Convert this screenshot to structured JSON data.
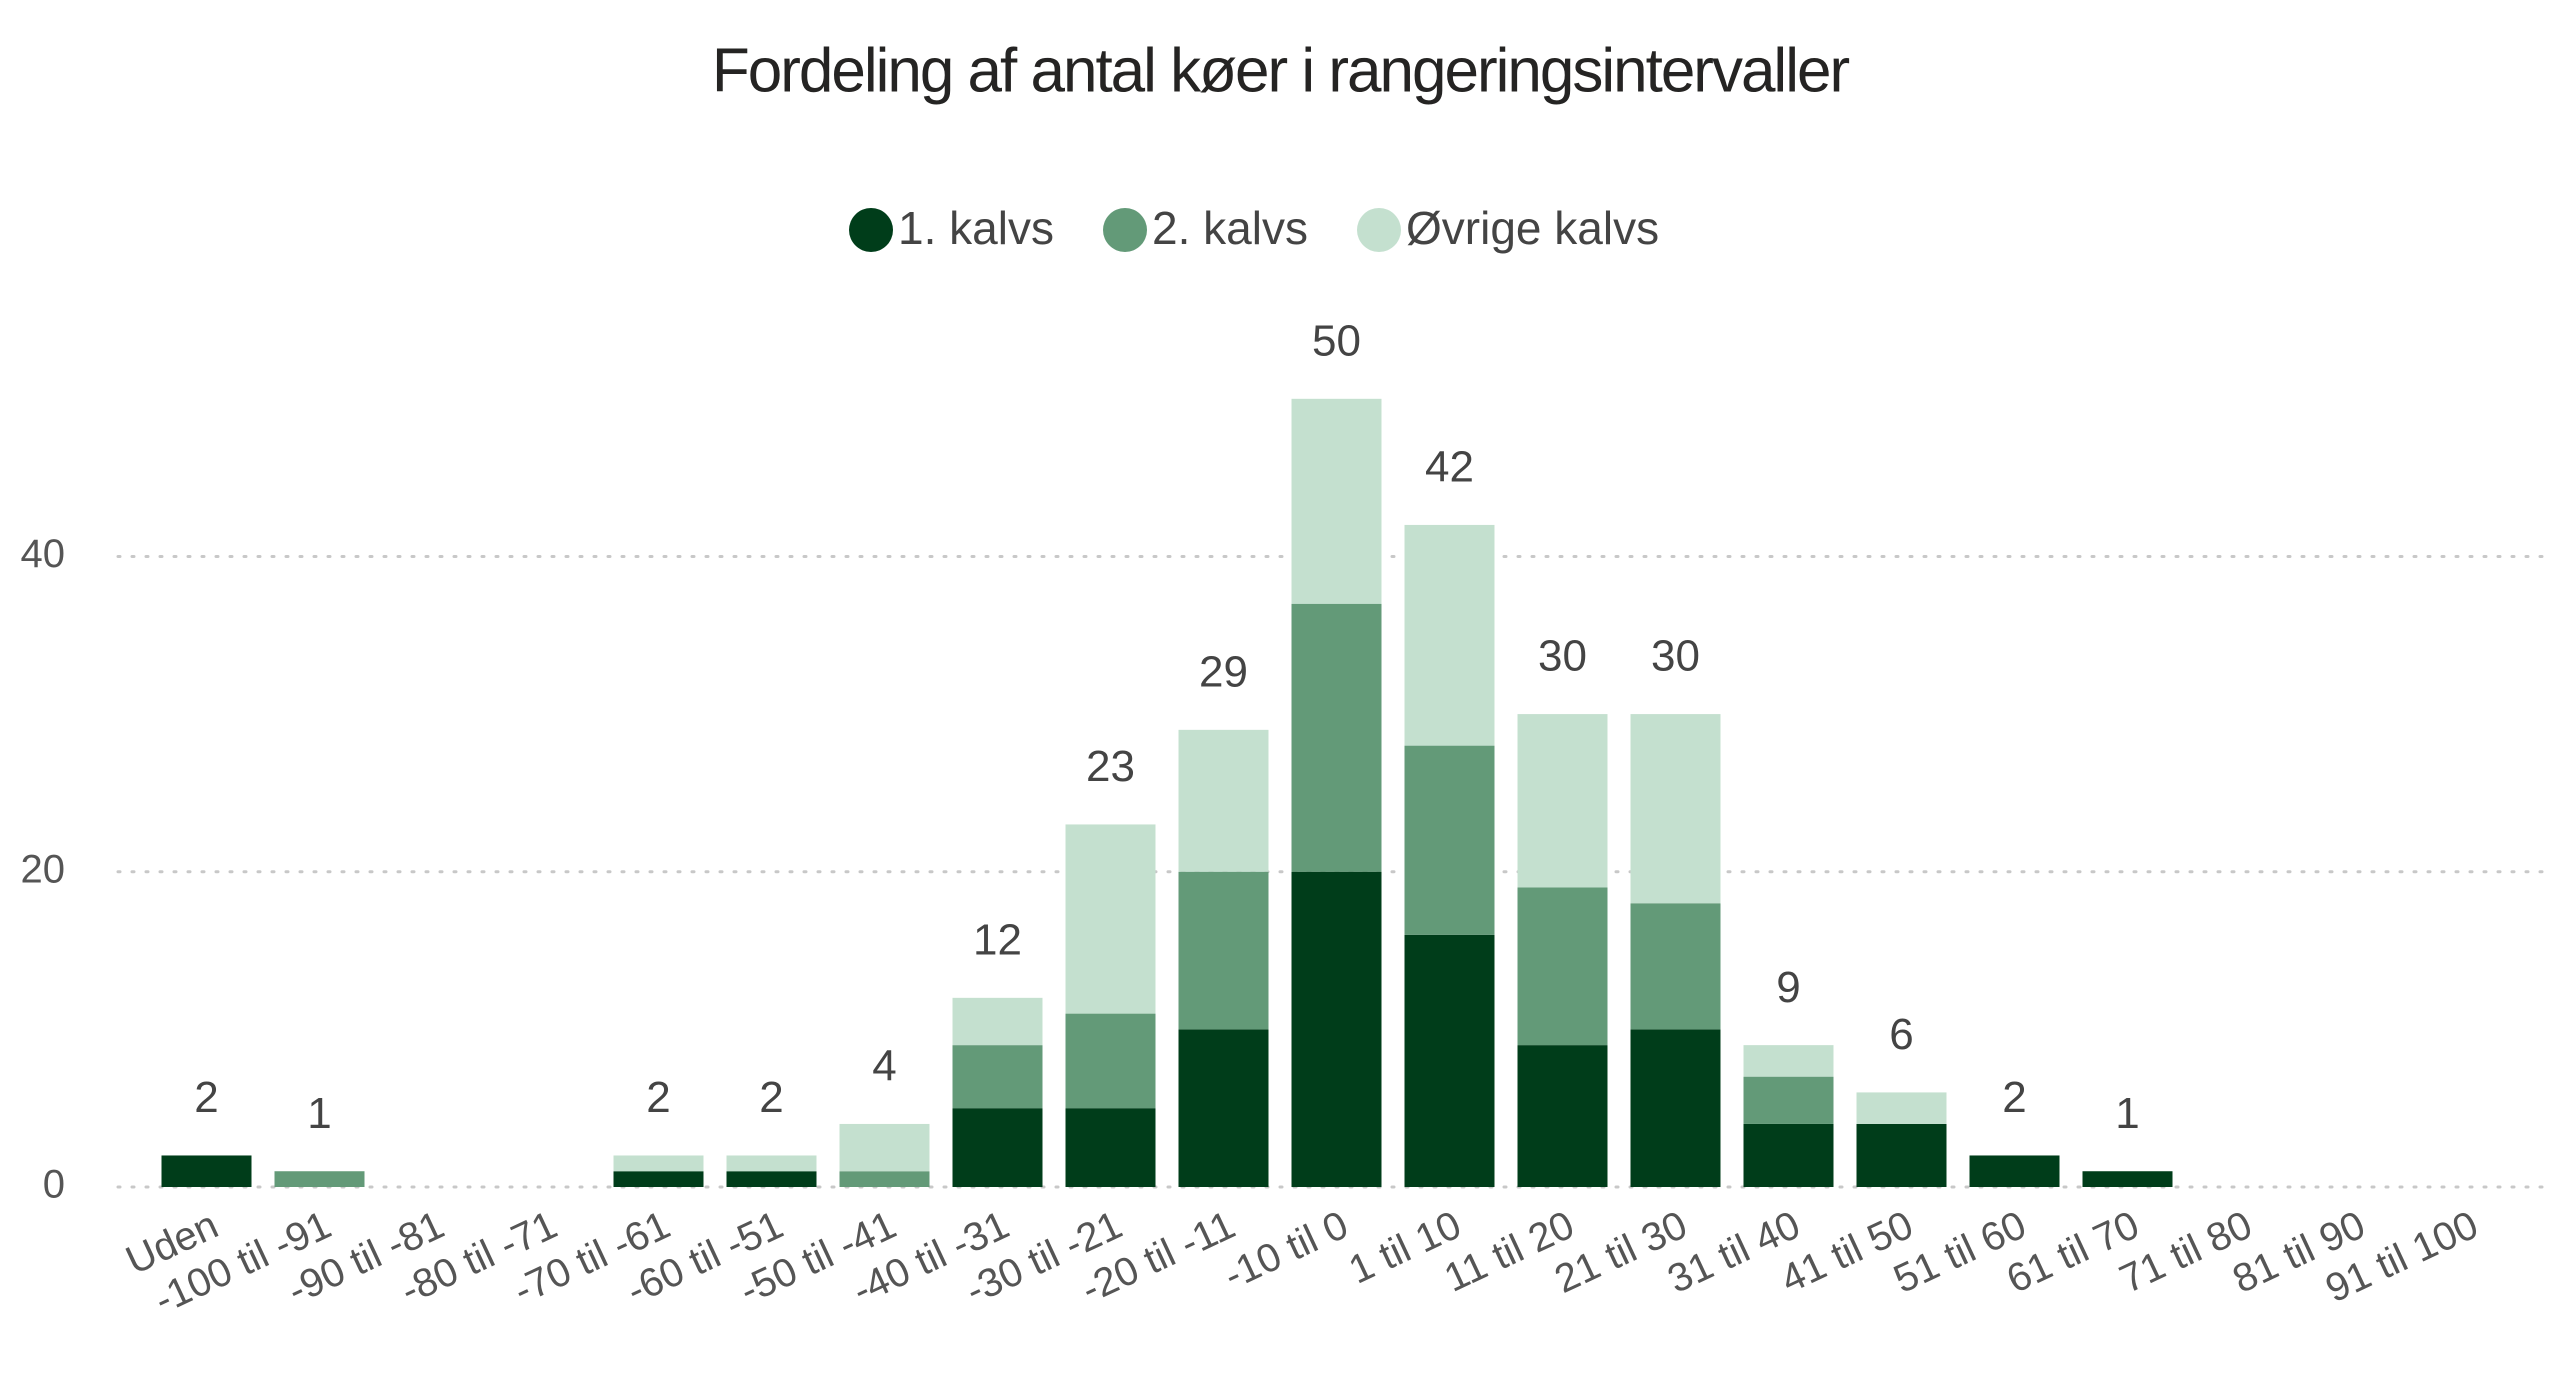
{
  "chart_data": {
    "type": "stacked-bar",
    "title": "Fordeling af antal køer i rangeringsintervaller",
    "categories": [
      "Uden",
      "-100 til -91",
      "-90 til -81",
      "-80 til -71",
      "-70 til -61",
      "-60 til -51",
      "-50 til -41",
      "-40 til -31",
      "-30 til -21",
      "-20 til -11",
      "-10 til 0",
      "1 til 10",
      "11 til 20",
      "21 til 30",
      "31 til 40",
      "41 til 50",
      "51 til 60",
      "61 til 70",
      "71 til 80",
      "81 til 90",
      "91 til 100"
    ],
    "series": [
      {
        "name": "1. kalvs",
        "color": "#003d1a",
        "values": [
          2,
          0,
          0,
          0,
          1,
          1,
          0,
          5,
          5,
          10,
          20,
          16,
          9,
          10,
          4,
          4,
          2,
          1,
          0,
          0,
          0
        ]
      },
      {
        "name": "2. kalvs",
        "color": "#639a78",
        "values": [
          0,
          1,
          0,
          0,
          0,
          0,
          1,
          4,
          6,
          10,
          17,
          12,
          10,
          8,
          3,
          0,
          0,
          0,
          0,
          0,
          0
        ]
      },
      {
        "name": "Øvrige kalvs",
        "color": "#c4e0cf",
        "values": [
          0,
          0,
          0,
          0,
          1,
          1,
          3,
          3,
          12,
          9,
          13,
          14,
          11,
          12,
          2,
          2,
          0,
          0,
          0,
          0,
          0
        ]
      }
    ],
    "totals": [
      2,
      1,
      null,
      null,
      2,
      2,
      4,
      12,
      23,
      29,
      50,
      42,
      30,
      30,
      9,
      6,
      2,
      1,
      null,
      null,
      null
    ],
    "ylim": [
      0,
      55
    ],
    "yticks": [
      0,
      20,
      40
    ],
    "grid": true,
    "legend": "top"
  }
}
